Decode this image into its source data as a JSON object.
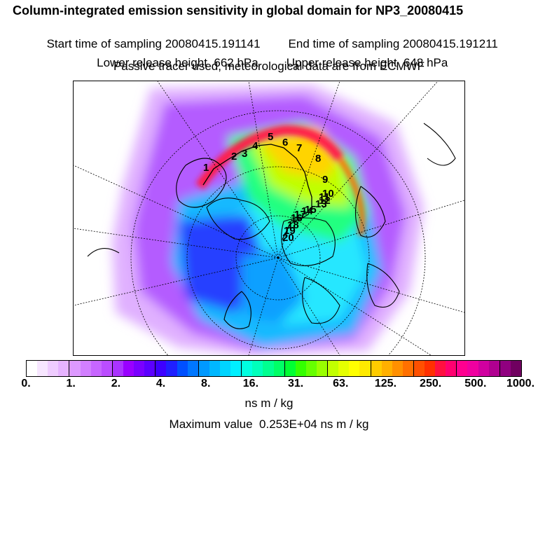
{
  "header": {
    "title": "Column-integrated emission sensitivity in global domain for NP3_20080415",
    "start_label": "Start time of sampling 20080415.191141",
    "end_label": "End time of sampling 20080415.191211",
    "lower_label": "Lower release height  662 hPa",
    "upper_label": "Upper release height  648 hPa",
    "tracer_note": "Passive tracer used, meteorological data are from ECMWF"
  },
  "map": {
    "track_labels": [
      "1",
      "2",
      "3",
      "4",
      "5",
      "6",
      "7",
      "8",
      "9",
      "10",
      "11",
      "12",
      "13",
      "14",
      "15",
      "16",
      "17",
      "18",
      "19",
      "20"
    ]
  },
  "colorbar": {
    "colors": [
      "#ffffff",
      "#f7e6ff",
      "#efccff",
      "#e6b3ff",
      "#dd99ff",
      "#d27fff",
      "#c766ff",
      "#bb4dff",
      "#aa33ff",
      "#9900ff",
      "#7a00ff",
      "#5c00ff",
      "#3d00ff",
      "#1f1fff",
      "#0050ff",
      "#0077ff",
      "#0099ff",
      "#00b7ff",
      "#00d4ff",
      "#00f0ff",
      "#00ffe0",
      "#00ffbb",
      "#00ff90",
      "#00ff66",
      "#00ff33",
      "#33ff00",
      "#66ff00",
      "#99ff00",
      "#c2ff00",
      "#e6ff00",
      "#ffff00",
      "#ffea00",
      "#ffcc00",
      "#ffb000",
      "#ff9000",
      "#ff7000",
      "#ff5000",
      "#ff3000",
      "#ff1040",
      "#ff0070",
      "#ff0090",
      "#f000a0",
      "#d000a0",
      "#b00090",
      "#900080",
      "#700060"
    ],
    "tick_labels": [
      "0.",
      "1.",
      "2.",
      "4.",
      "8.",
      "16.",
      "31.",
      "63.",
      "125.",
      "250.",
      "500.",
      "1000."
    ],
    "unit": "ns m / kg"
  },
  "footer": {
    "max_value": "Maximum value  0.253E+04 ns m / kg"
  }
}
